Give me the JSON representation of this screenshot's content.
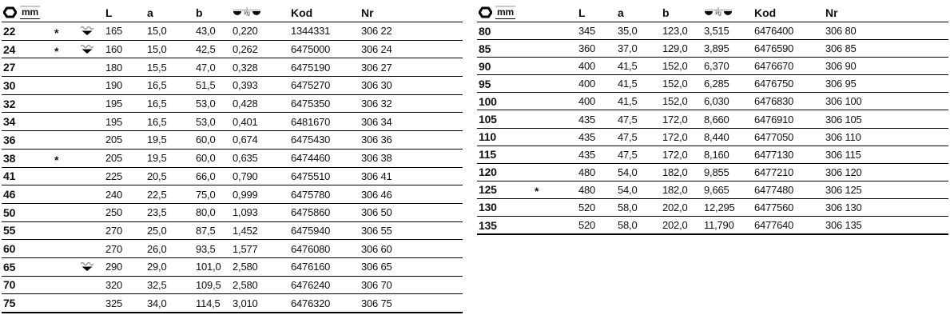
{
  "header": {
    "size_unit": "mm",
    "l": "L",
    "a": "a",
    "b": "b",
    "weight_unit": "kg",
    "kod": "Kod",
    "nr": "Nr"
  },
  "tables": [
    {
      "name": "left",
      "rows": [
        {
          "size": "22",
          "star": "*",
          "stamp": true,
          "l": "165",
          "a": "15,0",
          "b": "43,0",
          "kg": "0,220",
          "kod": "1344331",
          "nr": "306 22"
        },
        {
          "size": "24",
          "star": "*",
          "stamp": true,
          "l": "160",
          "a": "15,0",
          "b": "42,5",
          "kg": "0,262",
          "kod": "6475000",
          "nr": "306 24"
        },
        {
          "size": "27",
          "star": "",
          "stamp": false,
          "l": "180",
          "a": "15,5",
          "b": "47,0",
          "kg": "0,328",
          "kod": "6475190",
          "nr": "306 27"
        },
        {
          "size": "30",
          "star": "",
          "stamp": false,
          "l": "190",
          "a": "16,5",
          "b": "51,5",
          "kg": "0,393",
          "kod": "6475270",
          "nr": "306 30"
        },
        {
          "size": "32",
          "star": "",
          "stamp": false,
          "l": "195",
          "a": "16,5",
          "b": "53,0",
          "kg": "0,428",
          "kod": "6475350",
          "nr": "306 32"
        },
        {
          "size": "34",
          "star": "",
          "stamp": false,
          "l": "195",
          "a": "16,5",
          "b": "53,0",
          "kg": "0,401",
          "kod": "6481670",
          "nr": "306 34"
        },
        {
          "size": "36",
          "star": "",
          "stamp": false,
          "l": "205",
          "a": "19,5",
          "b": "60,0",
          "kg": "0,674",
          "kod": "6475430",
          "nr": "306 36"
        },
        {
          "size": "38",
          "star": "*",
          "stamp": false,
          "l": "205",
          "a": "19,5",
          "b": "60,0",
          "kg": "0,635",
          "kod": "6474460",
          "nr": "306 38"
        },
        {
          "size": "41",
          "star": "",
          "stamp": false,
          "l": "225",
          "a": "20,5",
          "b": "66,0",
          "kg": "0,790",
          "kod": "6475510",
          "nr": "306 41"
        },
        {
          "size": "46",
          "star": "",
          "stamp": false,
          "l": "240",
          "a": "22,5",
          "b": "75,0",
          "kg": "0,999",
          "kod": "6475780",
          "nr": "306 46"
        },
        {
          "size": "50",
          "star": "",
          "stamp": false,
          "l": "250",
          "a": "23,5",
          "b": "80,0",
          "kg": "1,093",
          "kod": "6475860",
          "nr": "306 50"
        },
        {
          "size": "55",
          "star": "",
          "stamp": false,
          "l": "270",
          "a": "25,0",
          "b": "87,5",
          "kg": "1,452",
          "kod": "6475940",
          "nr": "306 55"
        },
        {
          "size": "60",
          "star": "",
          "stamp": false,
          "l": "270",
          "a": "26,0",
          "b": "93,5",
          "kg": "1,577",
          "kod": "6476080",
          "nr": "306 60"
        },
        {
          "size": "65",
          "star": "",
          "stamp": true,
          "l": "290",
          "a": "29,0",
          "b": "101,0",
          "kg": "2,580",
          "kod": "6476160",
          "nr": "306 65"
        },
        {
          "size": "70",
          "star": "",
          "stamp": false,
          "l": "320",
          "a": "32,5",
          "b": "109,5",
          "kg": "2,580",
          "kod": "6476240",
          "nr": "306 70"
        },
        {
          "size": "75",
          "star": "",
          "stamp": false,
          "l": "325",
          "a": "34,0",
          "b": "114,5",
          "kg": "3,010",
          "kod": "6476320",
          "nr": "306 75"
        }
      ]
    },
    {
      "name": "right",
      "rows": [
        {
          "size": "80",
          "star": "",
          "stamp": false,
          "l": "345",
          "a": "35,0",
          "b": "123,0",
          "kg": "3,515",
          "kod": "6476400",
          "nr": "306 80"
        },
        {
          "size": "85",
          "star": "",
          "stamp": false,
          "l": "360",
          "a": "37,0",
          "b": "129,0",
          "kg": "3,895",
          "kod": "6476590",
          "nr": "306 85"
        },
        {
          "size": "90",
          "star": "",
          "stamp": false,
          "l": "400",
          "a": "41,5",
          "b": "152,0",
          "kg": "6,370",
          "kod": "6476670",
          "nr": "306 90"
        },
        {
          "size": "95",
          "star": "",
          "stamp": false,
          "l": "400",
          "a": "41,5",
          "b": "152,0",
          "kg": "6,285",
          "kod": "6476750",
          "nr": "306 95"
        },
        {
          "size": "100",
          "star": "",
          "stamp": false,
          "l": "400",
          "a": "41,5",
          "b": "152,0",
          "kg": "6,030",
          "kod": "6476830",
          "nr": "306 100"
        },
        {
          "size": "105",
          "star": "",
          "stamp": false,
          "l": "435",
          "a": "47,5",
          "b": "172,0",
          "kg": "8,660",
          "kod": "6476910",
          "nr": "306 105"
        },
        {
          "size": "110",
          "star": "",
          "stamp": false,
          "l": "435",
          "a": "47,5",
          "b": "172,0",
          "kg": "8,440",
          "kod": "6477050",
          "nr": "306 110"
        },
        {
          "size": "115",
          "star": "",
          "stamp": false,
          "l": "435",
          "a": "47,5",
          "b": "172,0",
          "kg": "8,160",
          "kod": "6477130",
          "nr": "306 115"
        },
        {
          "size": "120",
          "star": "",
          "stamp": false,
          "l": "480",
          "a": "54,0",
          "b": "182,0",
          "kg": "9,855",
          "kod": "6477210",
          "nr": "306 120"
        },
        {
          "size": "125",
          "star": "*",
          "stamp": false,
          "l": "480",
          "a": "54,0",
          "b": "182,0",
          "kg": "9,665",
          "kod": "6477480",
          "nr": "306 125"
        },
        {
          "size": "130",
          "star": "",
          "stamp": false,
          "l": "520",
          "a": "58,0",
          "b": "202,0",
          "kg": "12,295",
          "kod": "6477560",
          "nr": "306 130"
        },
        {
          "size": "135",
          "star": "",
          "stamp": false,
          "l": "520",
          "a": "58,0",
          "b": "202,0",
          "kg": "11,790",
          "kod": "6477640",
          "nr": "306 135"
        }
      ]
    }
  ]
}
